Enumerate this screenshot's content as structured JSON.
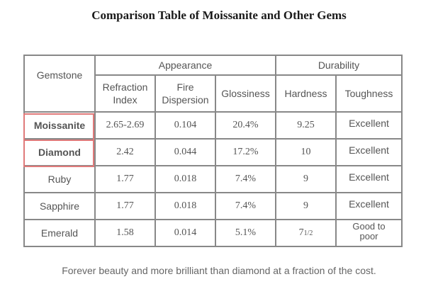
{
  "title": "Comparison Table of Moissanite and Other Gems",
  "table": {
    "groups": {
      "appearance": "Appearance",
      "durability": "Durability"
    },
    "headers": {
      "gemstone": "Gemstone",
      "refraction_line1": "Refraction",
      "refraction_line2": "Index",
      "fire_line1": "Fire",
      "fire_line2": "Dispersion",
      "glossiness": "Glossiness",
      "hardness": "Hardness",
      "toughness": "Toughness"
    },
    "rows": [
      {
        "gem": "Moissanite",
        "refraction": "2.65-2.69",
        "fire": "0.104",
        "glossiness": "20.4%",
        "hardness": "9.25",
        "toughness": "Excellent"
      },
      {
        "gem": "Diamond",
        "refraction": "2.42",
        "fire": "0.044",
        "glossiness": "17.2%",
        "hardness": "10",
        "toughness": "Excellent"
      },
      {
        "gem": "Ruby",
        "refraction": "1.77",
        "fire": "0.018",
        "glossiness": "7.4%",
        "hardness": "9",
        "toughness": "Excellent"
      },
      {
        "gem": "Sapphire",
        "refraction": "1.77",
        "fire": "0.018",
        "glossiness": "7.4%",
        "hardness": "9",
        "toughness": "Excellent"
      },
      {
        "gem": "Emerald",
        "refraction": "1.58",
        "fire": "0.014",
        "glossiness": "5.1%",
        "hardness_whole": "7",
        "hardness_fraction": "1/2",
        "toughness_line1": "Good to",
        "toughness_line2": "poor"
      }
    ]
  },
  "footer": "Forever beauty and more brilliant than diamond at a fraction of the cost.",
  "colors": {
    "highlight": "#e07a7a",
    "border": "#888888"
  }
}
